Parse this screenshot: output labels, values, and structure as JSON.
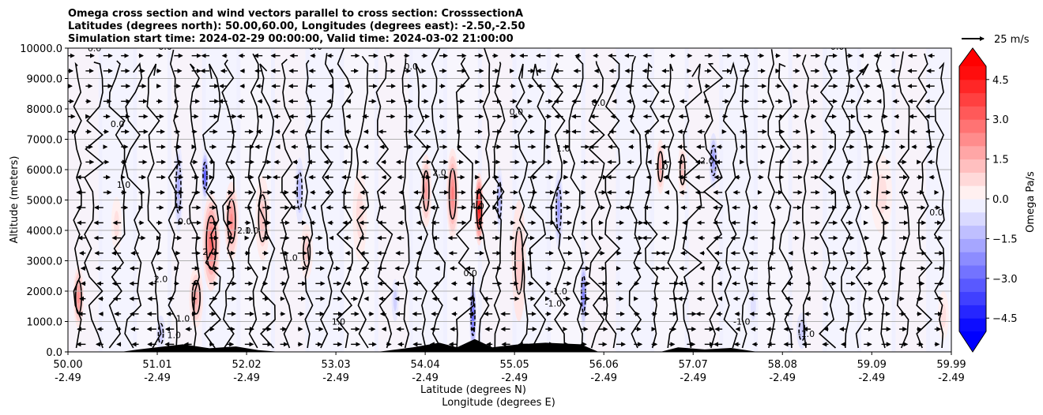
{
  "chart_data": {
    "type": "heatmap",
    "title_lines": [
      "Omega cross section and wind vectors parallel to cross section: CrosssectionA",
      "Latitudes (degrees north): 50.00,60.00, Longitudes (degrees east): -2.50,-2.50",
      "Simulation start time: 2024-02-29 00:00:00, Valid time: 2024-03-02 21:00:00"
    ],
    "ylabel": "Altitude (meters)",
    "xlabel_lines": [
      "Latitude (degrees N)",
      "Longitude (degrees E)"
    ],
    "ylim": [
      0,
      10000
    ],
    "xlim": [
      50.0,
      59.99
    ],
    "yticks": [
      {
        "value": 0,
        "label": "0.0"
      },
      {
        "value": 1000,
        "label": "1000.0"
      },
      {
        "value": 2000,
        "label": "2000.0"
      },
      {
        "value": 3000,
        "label": "3000.0"
      },
      {
        "value": 4000,
        "label": "4000.0"
      },
      {
        "value": 5000,
        "label": "5000.0"
      },
      {
        "value": 6000,
        "label": "6000.0"
      },
      {
        "value": 7000,
        "label": "7000.0"
      },
      {
        "value": 8000,
        "label": "8000.0"
      },
      {
        "value": 9000,
        "label": "9000.0"
      },
      {
        "value": 10000,
        "label": "10000.0"
      }
    ],
    "xticks": [
      {
        "value": 50.0,
        "lat": "50.00",
        "lon": "-2.49"
      },
      {
        "value": 51.01,
        "lat": "51.01",
        "lon": "-2.49"
      },
      {
        "value": 52.02,
        "lat": "52.02",
        "lon": "-2.49"
      },
      {
        "value": 53.03,
        "lat": "53.03",
        "lon": "-2.49"
      },
      {
        "value": 54.04,
        "lat": "54.04",
        "lon": "-2.49"
      },
      {
        "value": 55.05,
        "lat": "55.05",
        "lon": "-2.49"
      },
      {
        "value": 56.06,
        "lat": "56.06",
        "lon": "-2.49"
      },
      {
        "value": 57.07,
        "lat": "57.07",
        "lon": "-2.49"
      },
      {
        "value": 58.08,
        "lat": "58.08",
        "lon": "-2.49"
      },
      {
        "value": 59.09,
        "lat": "59.09",
        "lon": "-2.49"
      },
      {
        "value": 59.99,
        "lat": "59.99",
        "lon": "-2.49"
      }
    ],
    "grid": {
      "horizontal": true,
      "vertical": false
    },
    "colorbar": {
      "label": "Omega Pa/s",
      "range": [
        -5,
        5
      ],
      "step": 0.5,
      "extend": "both",
      "ticks": [
        {
          "value": 4.5,
          "label": "4.5"
        },
        {
          "value": 3.0,
          "label": "3.0"
        },
        {
          "value": 1.5,
          "label": "1.5"
        },
        {
          "value": 0.0,
          "label": "0.0"
        },
        {
          "value": -1.5,
          "label": "−1.5"
        },
        {
          "value": -3.0,
          "label": "−3.0"
        },
        {
          "value": -4.5,
          "label": "−4.5"
        }
      ],
      "colors": {
        "positive": "#ff0000",
        "negative": "#0000ff",
        "neutral": "#ffffff"
      }
    },
    "quiver_key": {
      "label": "25 m/s",
      "speed": 25
    },
    "features": [
      {
        "lat": 50.12,
        "alt": 1800,
        "omega": 2.3,
        "wlat": 0.06,
        "walt": 1000
      },
      {
        "lat": 50.55,
        "alt": 4200,
        "omega": 0.6,
        "wlat": 0.06,
        "walt": 900
      },
      {
        "lat": 51.05,
        "alt": 600,
        "omega": -1.0,
        "wlat": 0.05,
        "walt": 600
      },
      {
        "lat": 51.25,
        "alt": 5400,
        "omega": -1.6,
        "wlat": 0.05,
        "walt": 1500
      },
      {
        "lat": 51.55,
        "alt": 5800,
        "omega": -3.5,
        "wlat": 0.04,
        "walt": 800
      },
      {
        "lat": 51.62,
        "alt": 3600,
        "omega": 3.0,
        "wlat": 0.1,
        "walt": 1600
      },
      {
        "lat": 51.85,
        "alt": 4300,
        "omega": 2.3,
        "wlat": 0.08,
        "walt": 1300
      },
      {
        "lat": 51.45,
        "alt": 1800,
        "omega": 1.7,
        "wlat": 0.08,
        "walt": 1000
      },
      {
        "lat": 52.2,
        "alt": 4400,
        "omega": 1.2,
        "wlat": 0.08,
        "walt": 1400
      },
      {
        "lat": 52.62,
        "alt": 5300,
        "omega": -1.4,
        "wlat": 0.05,
        "walt": 1100
      },
      {
        "lat": 52.7,
        "alt": 3300,
        "omega": 1.1,
        "wlat": 0.07,
        "walt": 900
      },
      {
        "lat": 53.3,
        "alt": 4500,
        "omega": 0.7,
        "wlat": 0.08,
        "walt": 1500
      },
      {
        "lat": 53.7,
        "alt": 1700,
        "omega": -0.9,
        "wlat": 0.04,
        "walt": 700
      },
      {
        "lat": 54.05,
        "alt": 5300,
        "omega": 1.9,
        "wlat": 0.06,
        "walt": 1200
      },
      {
        "lat": 54.35,
        "alt": 5200,
        "omega": 2.6,
        "wlat": 0.07,
        "walt": 1500
      },
      {
        "lat": 54.58,
        "alt": 1200,
        "omega": -3.2,
        "wlat": 0.04,
        "walt": 1200
      },
      {
        "lat": 54.65,
        "alt": 4700,
        "omega": 4.6,
        "wlat": 0.05,
        "walt": 1200
      },
      {
        "lat": 54.88,
        "alt": 5000,
        "omega": -1.6,
        "wlat": 0.04,
        "walt": 1100
      },
      {
        "lat": 55.1,
        "alt": 3000,
        "omega": 1.0,
        "wlat": 0.08,
        "walt": 2000
      },
      {
        "lat": 55.55,
        "alt": 4700,
        "omega": -1.9,
        "wlat": 0.05,
        "walt": 1300
      },
      {
        "lat": 55.83,
        "alt": 1900,
        "omega": -2.6,
        "wlat": 0.04,
        "walt": 1100
      },
      {
        "lat": 56.7,
        "alt": 6100,
        "omega": 1.7,
        "wlat": 0.05,
        "walt": 900
      },
      {
        "lat": 56.95,
        "alt": 6000,
        "omega": 1.2,
        "wlat": 0.05,
        "walt": 900
      },
      {
        "lat": 57.3,
        "alt": 6300,
        "omega": -2.0,
        "wlat": 0.05,
        "walt": 900
      },
      {
        "lat": 57.75,
        "alt": 1500,
        "omega": -0.6,
        "wlat": 0.06,
        "walt": 900
      },
      {
        "lat": 58.3,
        "alt": 700,
        "omega": -1.0,
        "wlat": 0.06,
        "walt": 600
      },
      {
        "lat": 59.2,
        "alt": 5200,
        "omega": 0.6,
        "wlat": 0.12,
        "walt": 1300
      },
      {
        "lat": 59.9,
        "alt": 1200,
        "omega": 0.6,
        "wlat": 0.06,
        "walt": 800
      }
    ],
    "contour_labels": [
      {
        "lat": 50.3,
        "alt": 9900,
        "text": "0.0"
      },
      {
        "lat": 51.1,
        "alt": 9950,
        "text": "0.0"
      },
      {
        "lat": 52.8,
        "alt": 9950,
        "text": "0.0"
      },
      {
        "lat": 53.88,
        "alt": 9300,
        "text": "0.0"
      },
      {
        "lat": 56.0,
        "alt": 8100,
        "text": "0.0"
      },
      {
        "lat": 58.7,
        "alt": 9950,
        "text": "0.0"
      },
      {
        "lat": 51.32,
        "alt": 4200,
        "text": "0.0"
      },
      {
        "lat": 54.55,
        "alt": 2500,
        "text": "0.0"
      },
      {
        "lat": 50.63,
        "alt": 5400,
        "text": "1.0"
      },
      {
        "lat": 52.08,
        "alt": 3900,
        "text": "1.0"
      },
      {
        "lat": 52.52,
        "alt": 3000,
        "text": "1.0"
      },
      {
        "lat": 53.06,
        "alt": 900,
        "text": "1.0"
      },
      {
        "lat": 51.3,
        "alt": 1000,
        "text": "1.0"
      },
      {
        "lat": 51.2,
        "alt": 450,
        "text": "1.0"
      },
      {
        "lat": 50.56,
        "alt": 7400,
        "text": "0.0"
      },
      {
        "lat": 51.6,
        "alt": 3200,
        "text": "2.0"
      },
      {
        "lat": 51.05,
        "alt": 2300,
        "text": "2.0"
      },
      {
        "lat": 51.99,
        "alt": 3900,
        "text": "2.0"
      },
      {
        "lat": 54.2,
        "alt": 5800,
        "text": "2.0"
      },
      {
        "lat": 54.63,
        "alt": 4700,
        "text": "4.0"
      },
      {
        "lat": 55.6,
        "alt": 6600,
        "text": "1.0"
      },
      {
        "lat": 56.71,
        "alt": 6000,
        "text": "1.0"
      },
      {
        "lat": 57.21,
        "alt": 6200,
        "text": "-2.0"
      },
      {
        "lat": 55.55,
        "alt": 1900,
        "text": "-1.0"
      },
      {
        "lat": 55.49,
        "alt": 1500,
        "text": "-1.0"
      },
      {
        "lat": 57.62,
        "alt": 900,
        "text": "-1.0"
      },
      {
        "lat": 58.35,
        "alt": 500,
        "text": "-1.0"
      },
      {
        "lat": 55.07,
        "alt": 7800,
        "text": "0.0"
      },
      {
        "lat": 59.82,
        "alt": 4500,
        "text": "0.0"
      }
    ],
    "terrain": [
      {
        "lat": 50.0,
        "alt": 0
      },
      {
        "lat": 50.6,
        "alt": 0
      },
      {
        "lat": 50.8,
        "alt": 80
      },
      {
        "lat": 51.0,
        "alt": 150
      },
      {
        "lat": 51.3,
        "alt": 250
      },
      {
        "lat": 51.6,
        "alt": 120
      },
      {
        "lat": 51.9,
        "alt": 180
      },
      {
        "lat": 52.15,
        "alt": 60
      },
      {
        "lat": 52.4,
        "alt": 0
      },
      {
        "lat": 53.5,
        "alt": 0
      },
      {
        "lat": 53.9,
        "alt": 150
      },
      {
        "lat": 54.2,
        "alt": 300
      },
      {
        "lat": 54.4,
        "alt": 150
      },
      {
        "lat": 54.6,
        "alt": 420
      },
      {
        "lat": 54.8,
        "alt": 150
      },
      {
        "lat": 55.1,
        "alt": 250
      },
      {
        "lat": 55.4,
        "alt": 300
      },
      {
        "lat": 55.8,
        "alt": 250
      },
      {
        "lat": 56.0,
        "alt": 0
      },
      {
        "lat": 56.7,
        "alt": 0
      },
      {
        "lat": 56.9,
        "alt": 150
      },
      {
        "lat": 57.2,
        "alt": 80
      },
      {
        "lat": 57.5,
        "alt": 130
      },
      {
        "lat": 57.8,
        "alt": 0
      },
      {
        "lat": 59.99,
        "alt": 0
      }
    ],
    "winds": {
      "lat_start": 50.0,
      "lat_step": 0.2,
      "alt_start": 250,
      "alt_step": 500,
      "background_speed": 10
    }
  }
}
